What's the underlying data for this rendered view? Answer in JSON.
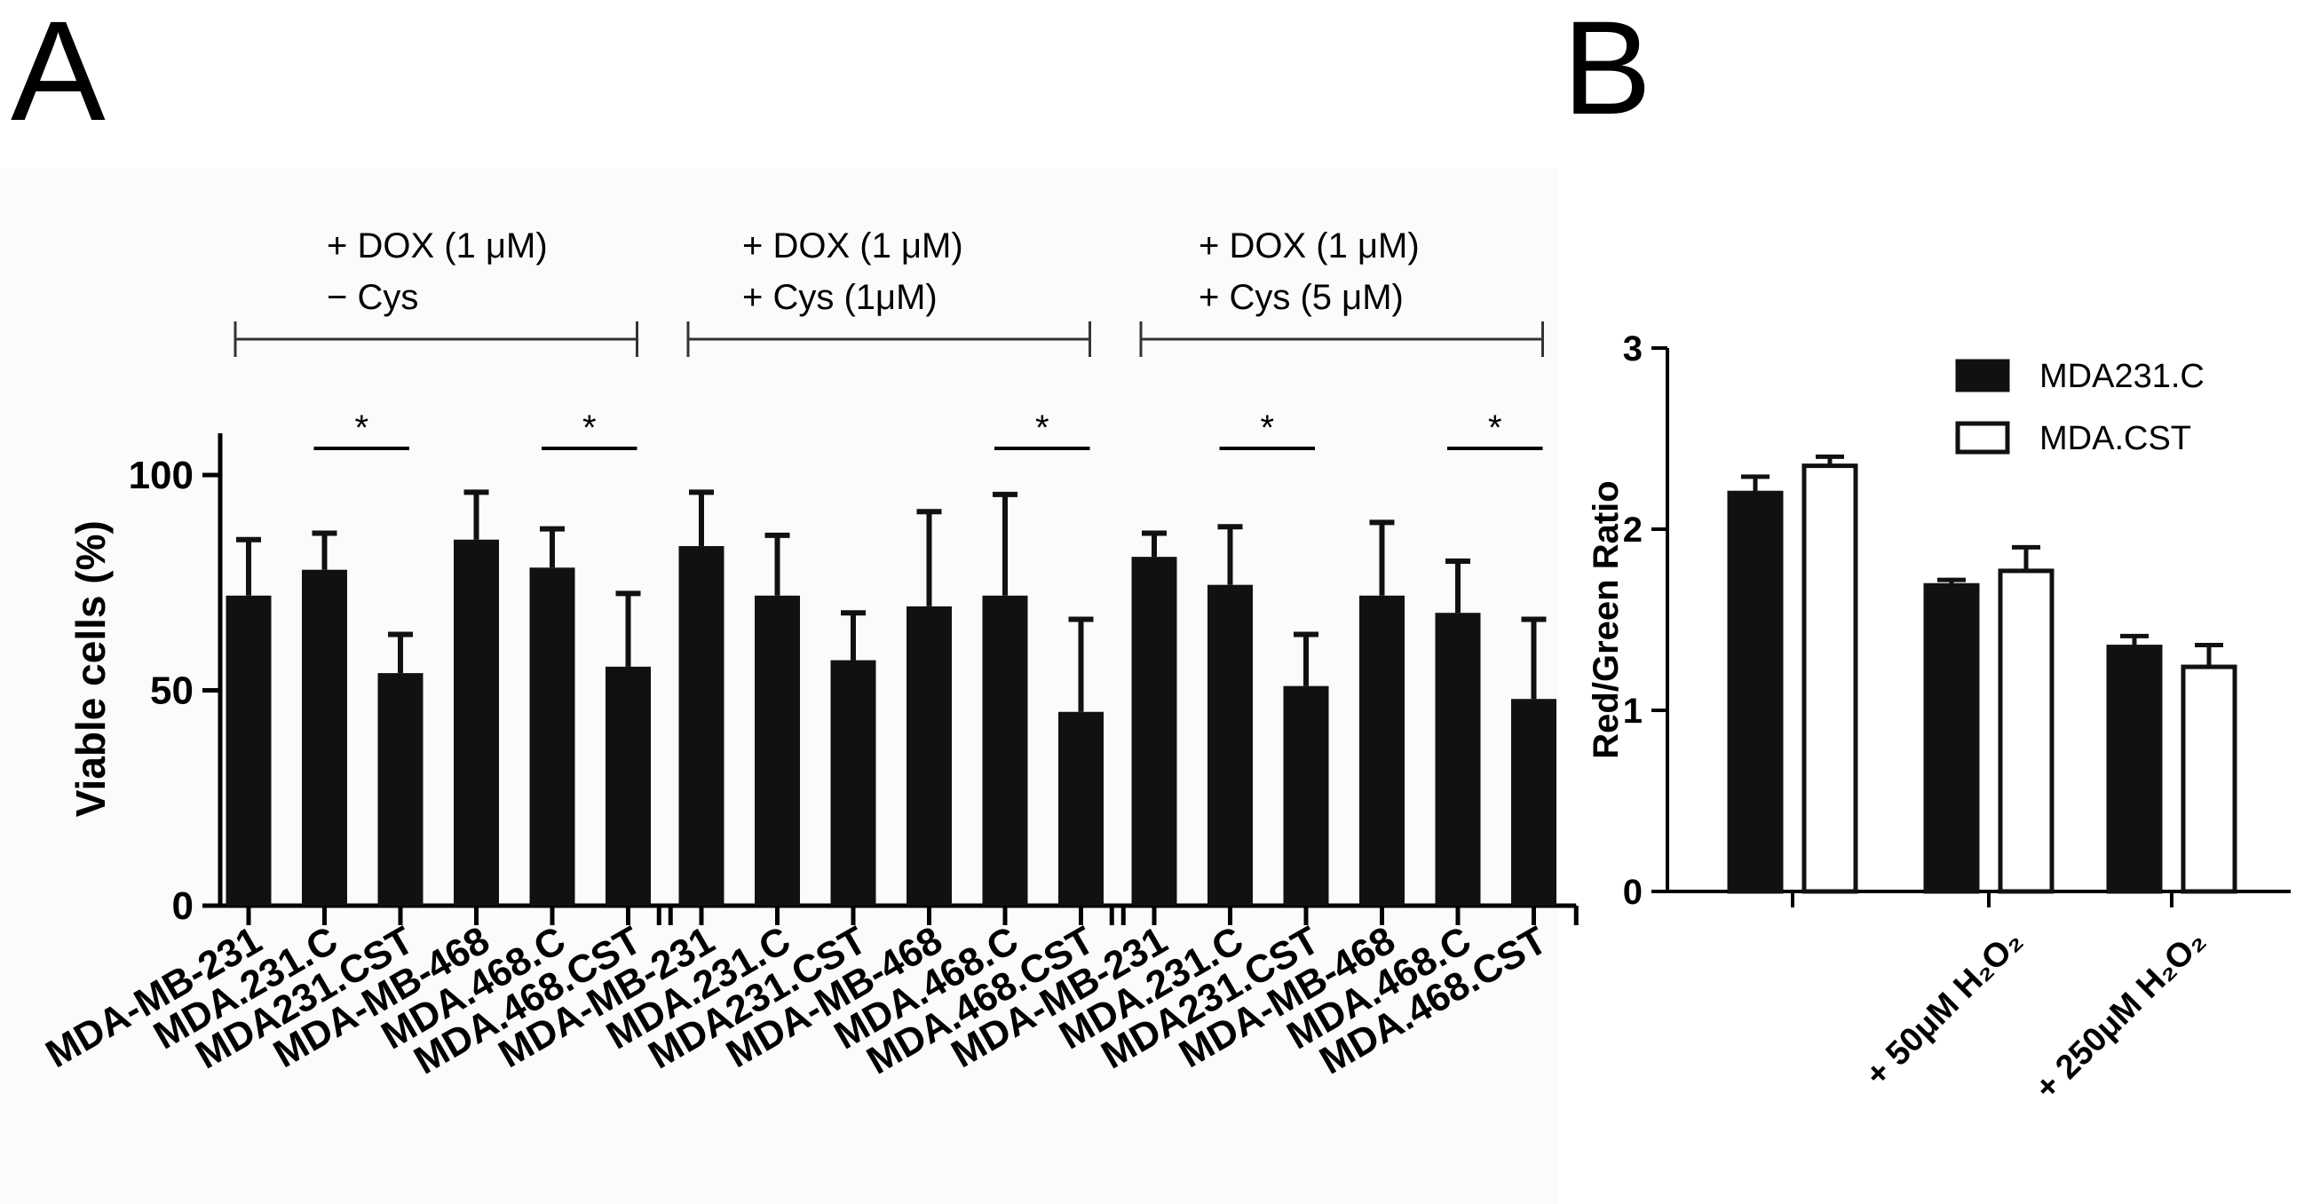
{
  "chart_data": [
    {
      "panel": "A",
      "type": "bar",
      "ylabel": "Viable cells (%)",
      "ylim": [
        0,
        110
      ],
      "yticks": [
        0,
        50,
        100
      ],
      "groups": [
        {
          "condition_lines": [
            "+ DOX (1 μM)",
            "− Cys"
          ],
          "categories": [
            "MDA-MB-231",
            "MDA.231.C",
            "MDA231.CST",
            "MDA-MB-468",
            "MDA.468.C",
            "MDA.468.CST"
          ],
          "values": [
            72,
            78,
            54,
            85,
            78.5,
            55.5
          ],
          "errors": [
            13,
            8.5,
            9,
            11,
            9,
            17
          ],
          "significance": [
            {
              "pair": [
                1,
                2
              ],
              "label": "*"
            },
            {
              "pair": [
                4,
                5
              ],
              "label": "*"
            }
          ]
        },
        {
          "condition_lines": [
            "+ DOX (1 μM)",
            "+ Cys (1μM)"
          ],
          "categories": [
            "MDA-MB-231",
            "MDA.231.C",
            "MDA231.CST",
            "MDA-MB-468",
            "MDA.468.C",
            "MDA.468.CST"
          ],
          "values": [
            83.5,
            72,
            57,
            69.5,
            72,
            45
          ],
          "errors": [
            12.5,
            14,
            11,
            22,
            23.5,
            21.5
          ],
          "significance": [
            {
              "pair": [
                4,
                5
              ],
              "label": "*"
            }
          ]
        },
        {
          "condition_lines": [
            "+ DOX (1 μM)",
            "+ Cys (5 μM)"
          ],
          "categories": [
            "MDA-MB-231",
            "MDA.231.C",
            "MDA231.CST",
            "MDA-MB-468",
            "MDA.468.C",
            "MDA.468.CST"
          ],
          "values": [
            81,
            74.5,
            51,
            72,
            68,
            48
          ],
          "errors": [
            5.5,
            13.5,
            12,
            17,
            12,
            18.5
          ],
          "significance": [
            {
              "pair": [
                1,
                2
              ],
              "label": "*"
            },
            {
              "pair": [
                4,
                5
              ],
              "label": "*"
            }
          ]
        }
      ]
    },
    {
      "panel": "B",
      "type": "bar",
      "ylabel": "Red/Green Ratio",
      "ylim": [
        0,
        3
      ],
      "yticks": [
        0,
        1,
        2,
        3
      ],
      "categories": [
        "",
        "+ 50μM H₂O₂",
        "+ 250μM H₂O₂"
      ],
      "series": [
        {
          "name": "MDA231.C",
          "fill": "#111111",
          "values": [
            2.2,
            1.69,
            1.35
          ],
          "errors": [
            0.09,
            0.03,
            0.06
          ]
        },
        {
          "name": "MDA.CST",
          "fill": "#ffffff",
          "values": [
            2.35,
            1.77,
            1.24
          ],
          "errors": [
            0.05,
            0.13,
            0.12
          ]
        }
      ],
      "legend": "top-right"
    }
  ],
  "panel_labels": {
    "a": "A",
    "b": "B"
  }
}
